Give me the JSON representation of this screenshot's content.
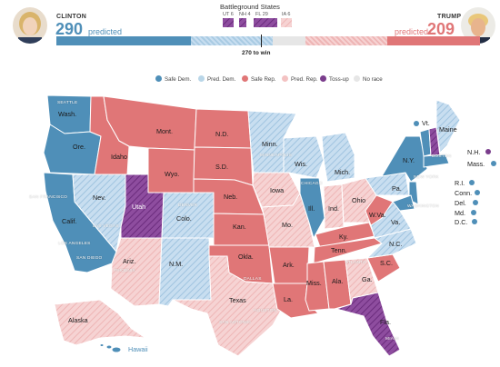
{
  "header": {
    "clinton": {
      "name": "CLINTON",
      "electoral_votes": "290",
      "status": "predicted"
    },
    "trump": {
      "name": "TRUMP",
      "electoral_votes": "209",
      "status": "predicted"
    },
    "battleground": {
      "title": "Battleground States",
      "states": [
        {
          "label": "UT 6"
        },
        {
          "label": "NH 4"
        },
        {
          "label": "FL 29"
        },
        {
          "label": "IA 6"
        }
      ]
    },
    "win_label": "270 to win"
  },
  "legend": [
    {
      "label": "Safe Dem.",
      "color": "#4f8fb8"
    },
    {
      "label": "Pred. Dem.",
      "color": "#b9d6e8"
    },
    {
      "label": "Safe Rep.",
      "color": "#e07677"
    },
    {
      "label": "Pred. Rep.",
      "color": "#f3c2c2"
    },
    {
      "label": "Toss-up",
      "color": "#7a3d8c"
    },
    {
      "label": "No race",
      "color": "#e6e6e6"
    }
  ],
  "states": [
    {
      "abbr": "Wash.",
      "status": "safe-dem"
    },
    {
      "abbr": "Ore.",
      "status": "safe-dem"
    },
    {
      "abbr": "Calif.",
      "status": "safe-dem"
    },
    {
      "abbr": "Nev.",
      "status": "pred-dem"
    },
    {
      "abbr": "Idaho",
      "status": "safe-rep"
    },
    {
      "abbr": "Utah",
      "status": "toss-up"
    },
    {
      "abbr": "Ariz.",
      "status": "pred-rep"
    },
    {
      "abbr": "Mont.",
      "status": "safe-rep"
    },
    {
      "abbr": "Wyo.",
      "status": "safe-rep"
    },
    {
      "abbr": "Colo.",
      "status": "pred-dem"
    },
    {
      "abbr": "N.M.",
      "status": "pred-dem"
    },
    {
      "abbr": "N.D.",
      "status": "safe-rep"
    },
    {
      "abbr": "S.D.",
      "status": "safe-rep"
    },
    {
      "abbr": "Neb.",
      "status": "safe-rep"
    },
    {
      "abbr": "Kan.",
      "status": "safe-rep"
    },
    {
      "abbr": "Okla.",
      "status": "safe-rep"
    },
    {
      "abbr": "Texas",
      "status": "pred-rep"
    },
    {
      "abbr": "Minn.",
      "status": "pred-dem"
    },
    {
      "abbr": "Iowa",
      "status": "pred-rep"
    },
    {
      "abbr": "Mo.",
      "status": "pred-rep"
    },
    {
      "abbr": "Ark.",
      "status": "safe-rep"
    },
    {
      "abbr": "La.",
      "status": "safe-rep"
    },
    {
      "abbr": "Wis.",
      "status": "pred-dem"
    },
    {
      "abbr": "Ill.",
      "status": "safe-dem"
    },
    {
      "abbr": "Mich.",
      "status": "pred-dem"
    },
    {
      "abbr": "Ind.",
      "status": "pred-rep"
    },
    {
      "abbr": "Ohio",
      "status": "pred-rep"
    },
    {
      "abbr": "Ky.",
      "status": "safe-rep"
    },
    {
      "abbr": "Tenn.",
      "status": "safe-rep"
    },
    {
      "abbr": "Miss.",
      "status": "safe-rep"
    },
    {
      "abbr": "Ala.",
      "status": "safe-rep"
    },
    {
      "abbr": "Ga.",
      "status": "pred-rep"
    },
    {
      "abbr": "Fla.",
      "status": "toss-up"
    },
    {
      "abbr": "S.C.",
      "status": "safe-rep"
    },
    {
      "abbr": "N.C.",
      "status": "pred-dem"
    },
    {
      "abbr": "Va.",
      "status": "pred-dem"
    },
    {
      "abbr": "W.Va.",
      "status": "safe-rep"
    },
    {
      "abbr": "Pa.",
      "status": "pred-dem"
    },
    {
      "abbr": "N.Y.",
      "status": "safe-dem"
    },
    {
      "abbr": "Maine",
      "status": "pred-dem"
    },
    {
      "abbr": "Alaska",
      "status": "pred-rep"
    },
    {
      "abbr": "Hawaii",
      "status": "safe-dem"
    }
  ],
  "side_states": [
    {
      "abbr": "Vt.",
      "color": "#4f8fb8"
    },
    {
      "abbr": "N.H.",
      "color": "#7a3d8c"
    },
    {
      "abbr": "Mass.",
      "color": "#4f8fb8"
    },
    {
      "abbr": "R.I.",
      "color": "#4f8fb8"
    },
    {
      "abbr": "Conn.",
      "color": "#4f8fb8"
    },
    {
      "abbr": "Del.",
      "color": "#4f8fb8"
    },
    {
      "abbr": "Md.",
      "color": "#4f8fb8"
    },
    {
      "abbr": "D.C.",
      "color": "#4f8fb8"
    }
  ],
  "cities": [
    "SEATTLE",
    "SAN FRANCISCO",
    "LOS ANGELES",
    "SAN DIEGO",
    "LAS VEGAS",
    "PHOENIX",
    "DENVER",
    "DALLAS",
    "HOUSTON",
    "SAN ANTONIO",
    "MINNEAPOLIS",
    "CHICAGO",
    "ATLANTA",
    "MIAMI",
    "BOSTON",
    "NEW YORK",
    "WASHINGTON"
  ]
}
